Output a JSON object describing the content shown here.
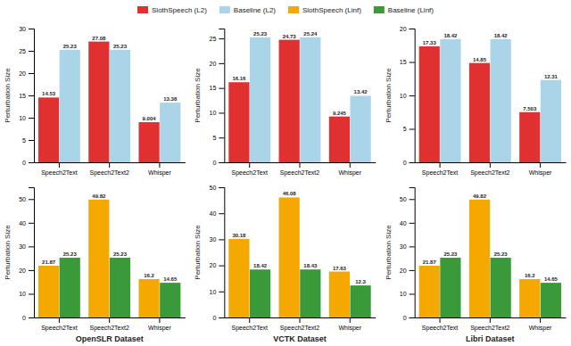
{
  "chart_data": [
    {
      "type": "bar",
      "categories": [
        "Speech2Text",
        "Speech2Text2",
        "Whisper"
      ],
      "series": [
        {
          "name": "SlothSpeech (L2)",
          "color": "#e03030",
          "values": [
            14.53,
            27.08,
            9.004
          ]
        },
        {
          "name": "Baseline (L2)",
          "color": "#aad4e8",
          "values": [
            25.23,
            25.23,
            13.38
          ]
        }
      ],
      "ylabel": "Perturbation Size",
      "ylim": [
        0,
        30
      ],
      "yticks": [
        0,
        5,
        10,
        15,
        20,
        25,
        30
      ],
      "data_labels": true,
      "grid": false
    },
    {
      "type": "bar",
      "categories": [
        "Speech2Text",
        "Speech2Text2",
        "Whisper"
      ],
      "series": [
        {
          "name": "SlothSpeech (L2)",
          "color": "#e03030",
          "values": [
            16.16,
            24.73,
            9.245
          ]
        },
        {
          "name": "Baseline (L2)",
          "color": "#aad4e8",
          "values": [
            25.23,
            25.24,
            13.42
          ]
        }
      ],
      "ylabel": "Perturbation Size",
      "ylim": [
        0,
        27
      ],
      "yticks": [
        0,
        5,
        10,
        15,
        20,
        25
      ],
      "data_labels": true,
      "grid": false
    },
    {
      "type": "bar",
      "categories": [
        "Speech2Text",
        "Speech2Text2",
        "Whisper"
      ],
      "series": [
        {
          "name": "SlothSpeech (L2)",
          "color": "#e03030",
          "values": [
            17.33,
            14.85,
            7.503
          ]
        },
        {
          "name": "Baseline (L2)",
          "color": "#aad4e8",
          "values": [
            18.42,
            18.42,
            12.31
          ]
        }
      ],
      "ylabel": "Perturbation Size",
      "ylim": [
        0,
        20
      ],
      "yticks": [
        0,
        5,
        10,
        15,
        20
      ],
      "data_labels": true,
      "grid": false
    },
    {
      "type": "bar",
      "categories": [
        "Speech2Text",
        "Speech2Text2",
        "Whisper"
      ],
      "series": [
        {
          "name": "SlothSpeech (Linf)",
          "color": "#f5a800",
          "values": [
            21.87,
            49.82,
            16.2
          ]
        },
        {
          "name": "Baseline (Linf)",
          "color": "#3a9a3a",
          "values": [
            25.23,
            25.23,
            14.65
          ]
        }
      ],
      "ylabel": "Perturbation Size",
      "xlabel": "OpenSLR Dataset",
      "ylim": [
        0,
        55
      ],
      "yticks": [
        0,
        10,
        20,
        30,
        40,
        50
      ],
      "data_labels": true,
      "grid": false
    },
    {
      "type": "bar",
      "categories": [
        "Speech2Text",
        "Speech2Text2",
        "Whisper"
      ],
      "series": [
        {
          "name": "SlothSpeech (Linf)",
          "color": "#f5a800",
          "values": [
            30.18,
            46.08,
            17.63
          ]
        },
        {
          "name": "Baseline (Linf)",
          "color": "#3a9a3a",
          "values": [
            18.42,
            18.43,
            12.3
          ]
        }
      ],
      "ylabel": "Perturbation Size",
      "xlabel": "VCTK Dataset",
      "ylim": [
        0,
        50
      ],
      "yticks": [
        0,
        10,
        20,
        30,
        40,
        50
      ],
      "data_labels": true,
      "grid": false
    },
    {
      "type": "bar",
      "categories": [
        "Speech2Text",
        "Speech2Text2",
        "Whisper"
      ],
      "series": [
        {
          "name": "SlothSpeech (Linf)",
          "color": "#f5a800",
          "values": [
            21.87,
            49.82,
            16.2
          ]
        },
        {
          "name": "Baseline (Linf)",
          "color": "#3a9a3a",
          "values": [
            25.23,
            25.23,
            14.65
          ]
        }
      ],
      "ylabel": "Perturbation Size",
      "xlabel": "Libri Dataset",
      "ylim": [
        0,
        55
      ],
      "yticks": [
        0,
        10,
        20,
        30,
        40,
        50
      ],
      "data_labels": true,
      "grid": false
    }
  ]
}
